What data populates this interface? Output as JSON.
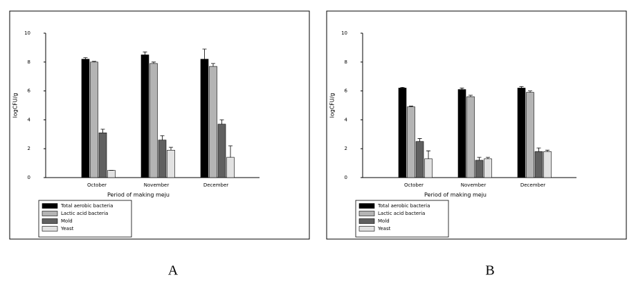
{
  "chart_data": [
    {
      "type": "bar",
      "panel_label": "A",
      "ylabel": "logCFU/g",
      "xlabel": "Period of making meju",
      "categories": [
        "October",
        "November",
        "December"
      ],
      "series": [
        {
          "name": "Total aerobic bacteria",
          "color": "#000000",
          "values": [
            8.2,
            8.5,
            8.2
          ],
          "errors": [
            0.1,
            0.2,
            0.7
          ]
        },
        {
          "name": "Lactic acid bacteria",
          "color": "#b4b4b4",
          "values": [
            8.0,
            7.9,
            7.7
          ],
          "errors": [
            0.05,
            0.1,
            0.2
          ]
        },
        {
          "name": "Mold",
          "color": "#606060",
          "values": [
            3.1,
            2.6,
            3.7
          ],
          "errors": [
            0.25,
            0.3,
            0.3
          ]
        },
        {
          "name": "Yeast",
          "color": "#e2e2e2",
          "values": [
            0.5,
            1.9,
            1.4
          ],
          "errors": [
            0,
            0.2,
            0.8
          ]
        }
      ],
      "ylim": [
        0,
        10
      ],
      "yticks": [
        0,
        2,
        4,
        6,
        8,
        10
      ]
    },
    {
      "type": "bar",
      "panel_label": "B",
      "ylabel": "logCFU/g",
      "xlabel": "Period of making meju",
      "categories": [
        "October",
        "November",
        "December"
      ],
      "series": [
        {
          "name": "Total aerobic bacteria",
          "color": "#000000",
          "values": [
            6.2,
            6.1,
            6.2
          ],
          "errors": [
            0.05,
            0.1,
            0.1
          ]
        },
        {
          "name": "Lactic acid bacteria",
          "color": "#b4b4b4",
          "values": [
            4.9,
            5.6,
            5.9
          ],
          "errors": [
            0.05,
            0.1,
            0.1
          ]
        },
        {
          "name": "Mold",
          "color": "#606060",
          "values": [
            2.5,
            1.2,
            1.8
          ],
          "errors": [
            0.2,
            0.2,
            0.25
          ]
        },
        {
          "name": "Yeast",
          "color": "#e2e2e2",
          "values": [
            1.3,
            1.3,
            1.8
          ],
          "errors": [
            0.55,
            0.1,
            0.1
          ]
        }
      ],
      "ylim": [
        0,
        10
      ],
      "yticks": [
        0,
        2,
        4,
        6,
        8,
        10
      ]
    }
  ]
}
